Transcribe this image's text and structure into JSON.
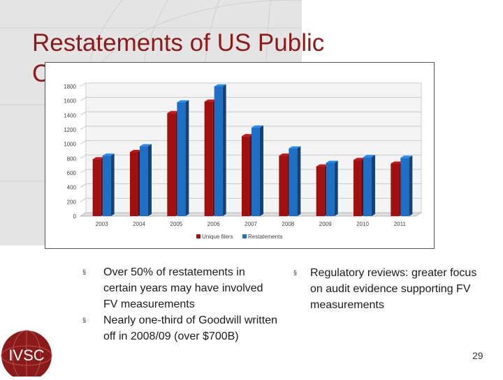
{
  "slide": {
    "title": "Restatements of US Public Companies",
    "page_number": "29",
    "logo_text": "IVSC",
    "colors": {
      "title": "#8b1a1a",
      "series1": "#a01010",
      "series2": "#1f6fc4",
      "background_panel": "#e4e4e4"
    }
  },
  "bullets_left": [
    "Over 50% of restatements in certain years may have involved FV measurements",
    "Nearly one-third of Goodwill written off in 2008/09 (over $700B)"
  ],
  "bullets_right": [
    "Regulatory reviews: greater focus on audit evidence supporting FV measurements"
  ],
  "bullet_glyph": "§",
  "chart_data": {
    "type": "bar",
    "categories": [
      "2003",
      "2004",
      "2005",
      "2006",
      "2007",
      "2008",
      "2009",
      "2010",
      "2011"
    ],
    "series": [
      {
        "name": "Unique filers",
        "color": "#a01010",
        "values": [
          790,
          890,
          1430,
          1590,
          1110,
          840,
          690,
          780,
          730
        ]
      },
      {
        "name": "Restatements",
        "color": "#1f6fc4",
        "values": [
          840,
          970,
          1580,
          1800,
          1230,
          940,
          740,
          820,
          810
        ]
      }
    ],
    "yticks": [
      "0",
      "200",
      "400",
      "600",
      "800",
      "1000",
      "1200",
      "1400",
      "1600",
      "1800"
    ],
    "ylim": [
      0,
      1800
    ],
    "grid": true,
    "legend_position": "bottom-center",
    "style": "3d-columns"
  }
}
